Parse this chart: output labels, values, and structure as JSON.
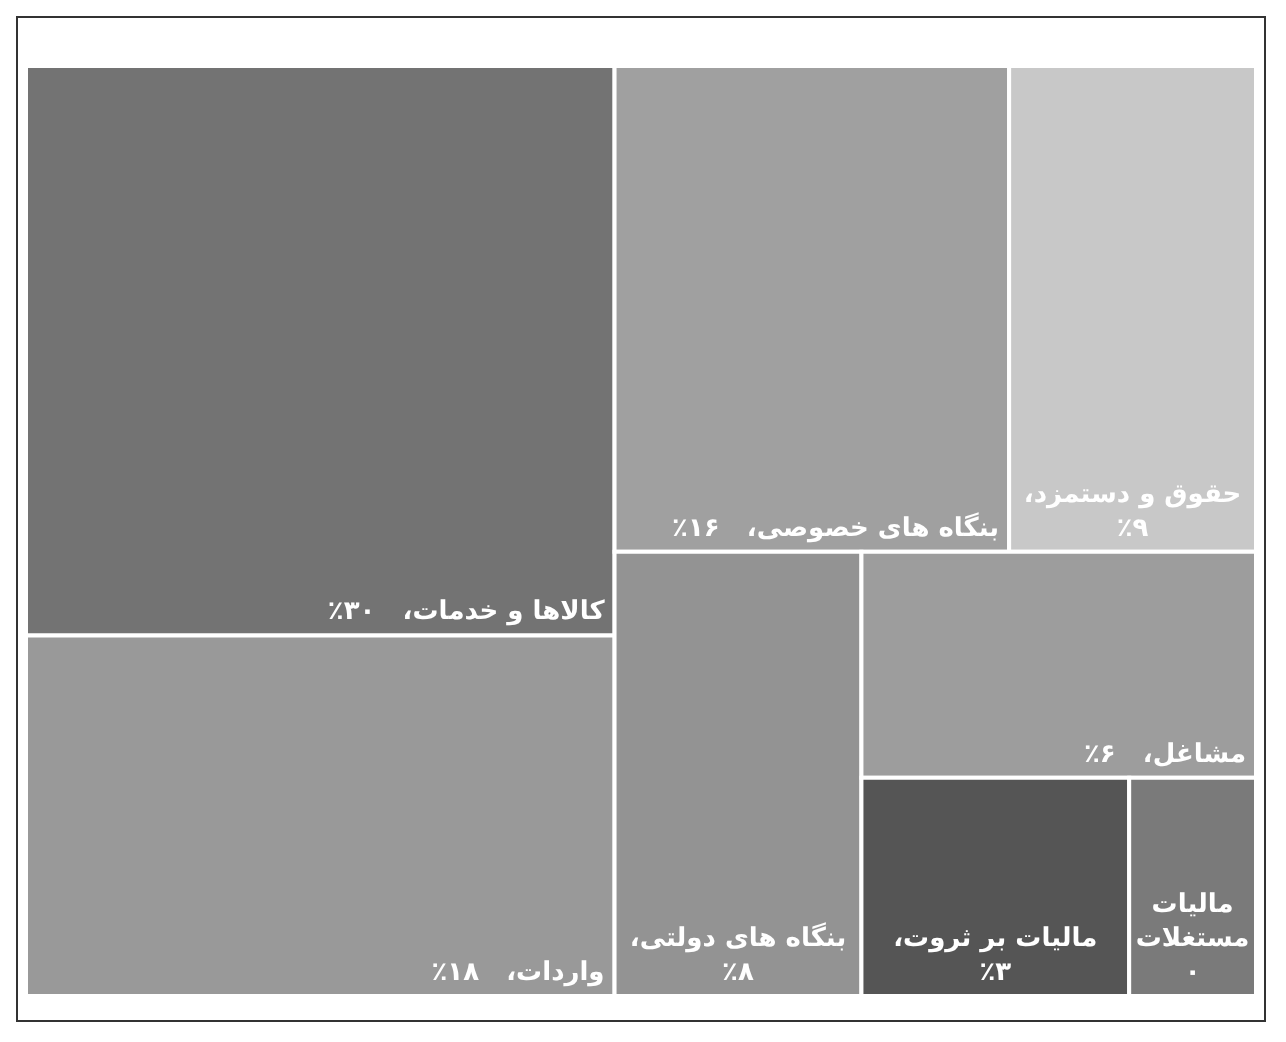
{
  "chart_data": {
    "type": "other",
    "categories": [
      "کالاها و خدمات،",
      "واردات،",
      "بنگاه های خصوصی،",
      "حقوق و دستمزد،",
      "بنگاه های دولتی،",
      "مشاغل،",
      "مالیات بر ثروت،",
      "مالیات مستغلات"
    ],
    "values": [
      30,
      18,
      16,
      9,
      8,
      6,
      3,
      0
    ],
    "value_labels": [
      "٪۳۰",
      "٪۱۸",
      "٪۱۶",
      "٪۹",
      "٪۸",
      "٪۶",
      "٪۳",
      "۰"
    ],
    "colors": [
      "#737373",
      "#999999",
      "#a0a0a0",
      "#c8c8c8",
      "#939393",
      "#9d9d9d",
      "#555555",
      "#7a7a7a"
    ]
  }
}
